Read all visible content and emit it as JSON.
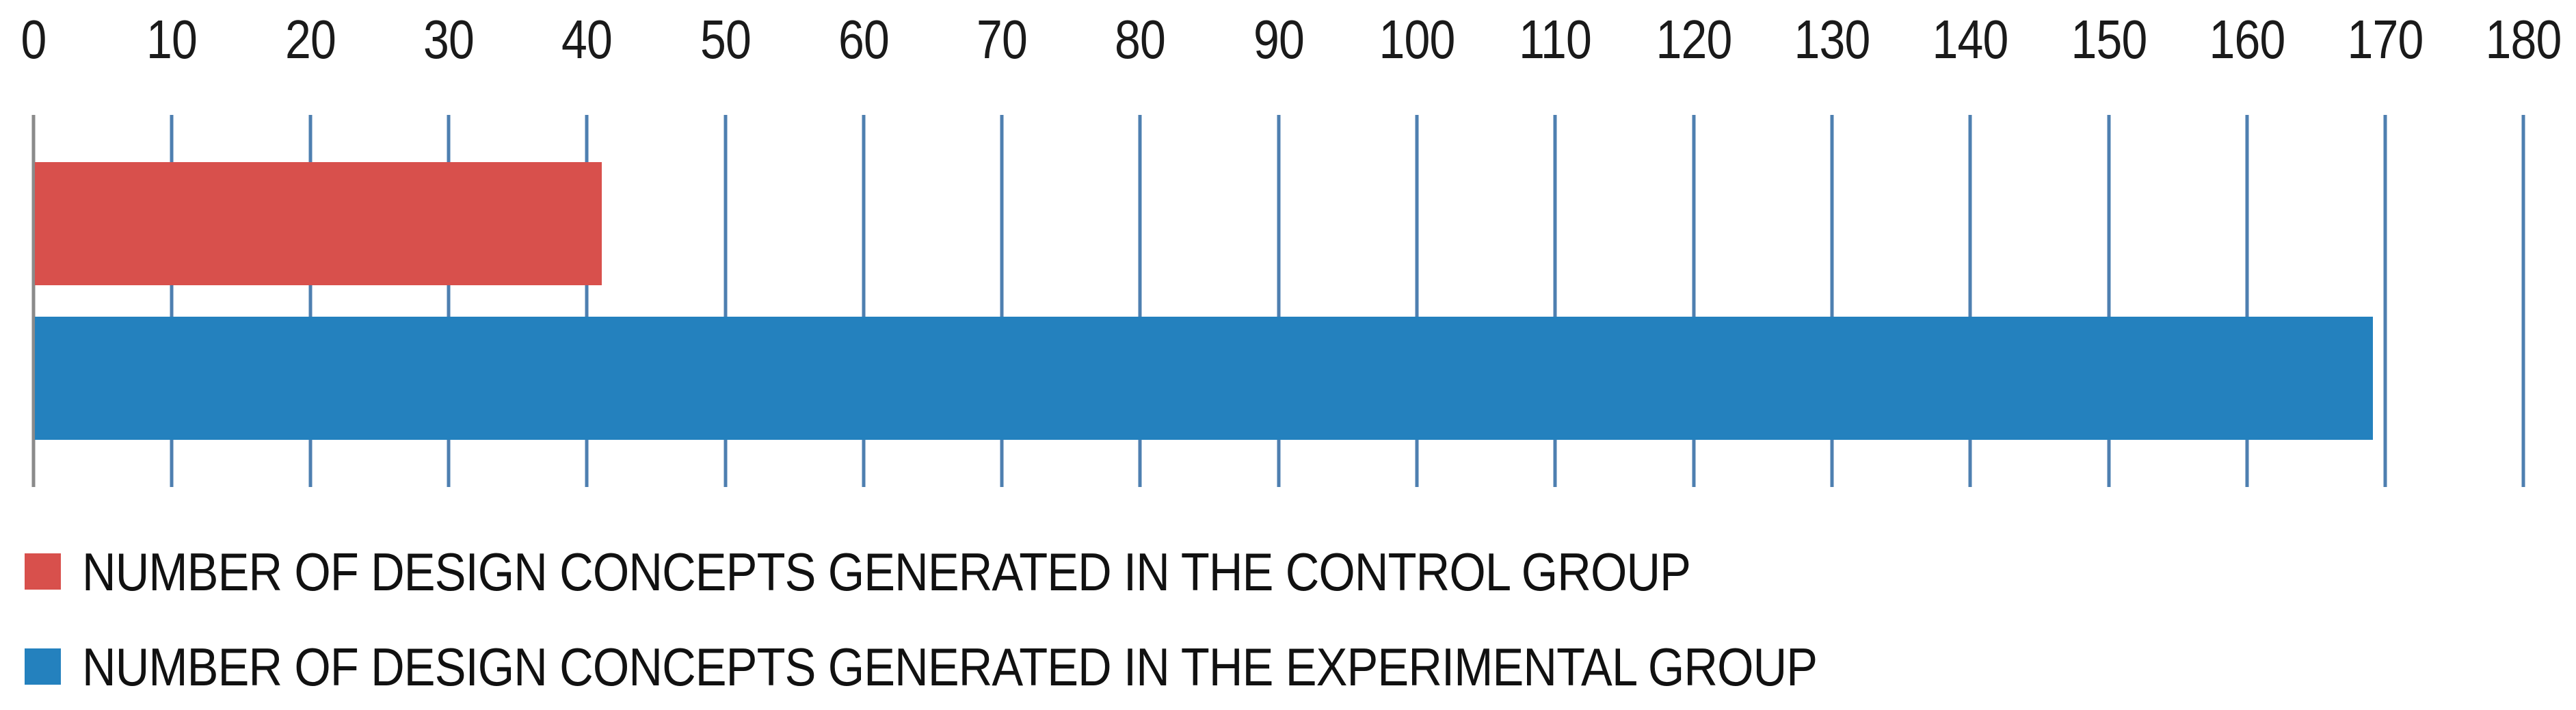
{
  "chart_data": {
    "type": "bar",
    "orientation": "horizontal",
    "title": "",
    "xlabel": "",
    "ylabel": "",
    "xlim": [
      0,
      180
    ],
    "xticks": [
      0,
      10,
      20,
      30,
      40,
      50,
      60,
      70,
      80,
      90,
      100,
      110,
      120,
      130,
      140,
      150,
      160,
      170,
      180
    ],
    "grid": true,
    "gridline_color": "#4e7fb0",
    "axis_line_color": "#8a8a8a",
    "tick_text_color": "#1a1a1a",
    "legend_position": "bottom-left",
    "series": [
      {
        "name": "NUMBER OF DESIGN CONCEPTS GENERATED IN THE CONTROL GROUP",
        "value": 41,
        "color": "#d8504c"
      },
      {
        "name": "NUMBER OF DESIGN CONCEPTS GENERATED IN THE EXPERIMENTAL GROUP",
        "value": 169,
        "color": "#2481be"
      }
    ]
  },
  "legend": {
    "items": [
      {
        "label": "NUMBER OF DESIGN CONCEPTS GENERATED IN THE CONTROL GROUP",
        "color": "#d8504c"
      },
      {
        "label": "NUMBER OF DESIGN CONCEPTS GENERATED IN THE EXPERIMENTAL GROUP",
        "color": "#2481be"
      }
    ]
  }
}
